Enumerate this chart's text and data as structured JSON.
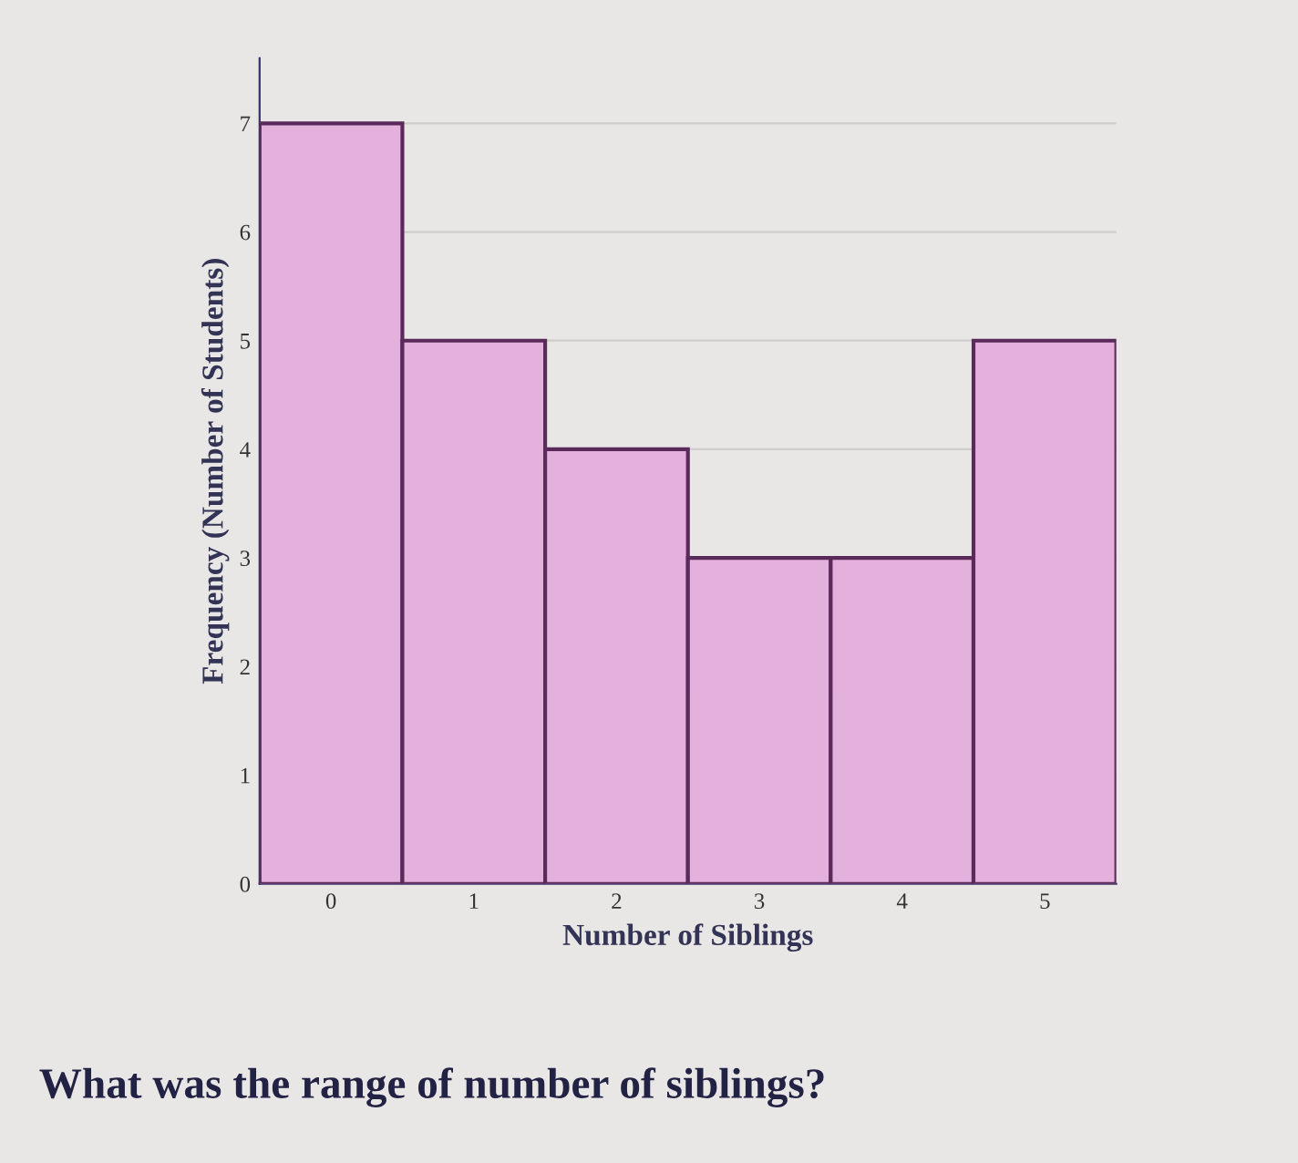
{
  "chart_data": {
    "type": "bar",
    "categories": [
      "0",
      "1",
      "2",
      "3",
      "4",
      "5"
    ],
    "values": [
      7,
      5,
      4,
      3,
      3,
      5
    ],
    "color": "#e4b0dc",
    "xlabel": "Number of Siblings",
    "ylabel": "Frequency (Number of Students)",
    "ylim": [
      0,
      7.6
    ],
    "yticks": [
      0,
      1,
      2,
      3,
      4,
      5,
      6,
      7
    ],
    "grid": "y",
    "annotations": [
      "What was the range of number of siblings?"
    ]
  }
}
